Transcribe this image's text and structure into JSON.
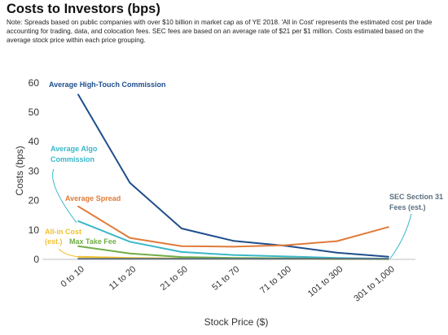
{
  "header": {
    "title": "Costs to Investors (bps)",
    "note": "Note: Spreads based on public companies with over $10 billion in market cap as of YE 2018. 'All in Cost' represents the estimated cost per trade accounting for trading, data, and colocation fees. SEC fees are based on an average rate of $21 per $1 million. Costs estimated based on the average stock price within each price grouping."
  },
  "chart_data": {
    "type": "line",
    "title": "Costs to Investors (bps)",
    "xlabel": "Stock Price ($)",
    "ylabel": "Costs (bps)",
    "ylim": [
      0,
      60
    ],
    "yticks": [
      0,
      10,
      20,
      30,
      40,
      50,
      60
    ],
    "grid": false,
    "legend": "inline labels",
    "categories": [
      "0 to 10",
      "11 to 20",
      "21 to 50",
      "51 to 70",
      "71 to 100",
      "101 to 300",
      "301 to 1,000"
    ],
    "series": [
      {
        "name": "Average High-Touch Commission",
        "label_lines": [
          "Average High-Touch Commission"
        ],
        "color": "#1f4e8c",
        "values": [
          56,
          26,
          10.5,
          6.3,
          4.6,
          2.3,
          0.9
        ]
      },
      {
        "name": "Average Algo Commission",
        "label_lines": [
          "Average Algo",
          "Commission"
        ],
        "color": "#3ab7c8",
        "values": [
          13,
          6,
          2.5,
          1.5,
          1.0,
          0.5,
          0.2
        ]
      },
      {
        "name": "Average Spread",
        "label_lines": [
          "Average Spread"
        ],
        "color": "#e07b39",
        "values": [
          18,
          7.3,
          4.5,
          4.3,
          4.8,
          6.2,
          11
        ]
      },
      {
        "name": "All-in Cost (est.)",
        "label_lines": [
          "All-in Cost",
          "(est.)"
        ],
        "color": "#f2c02e",
        "values": [
          0.9,
          0.5,
          0.3,
          0.2,
          0.2,
          0.1,
          0.1
        ]
      },
      {
        "name": "Max Take Fee",
        "label_lines": [
          "Max Take Fee"
        ],
        "color": "#70ad47",
        "values": [
          4.5,
          2.0,
          0.8,
          0.5,
          0.4,
          0.2,
          0.1
        ]
      },
      {
        "name": "SEC Section 31 Fees (est.)",
        "label_lines": [
          "SEC Section 31",
          "Fees (est.)"
        ],
        "color": "#5b6f7f",
        "values": [
          0.2,
          0.2,
          0.2,
          0.2,
          0.2,
          0.2,
          0.2
        ]
      }
    ]
  }
}
